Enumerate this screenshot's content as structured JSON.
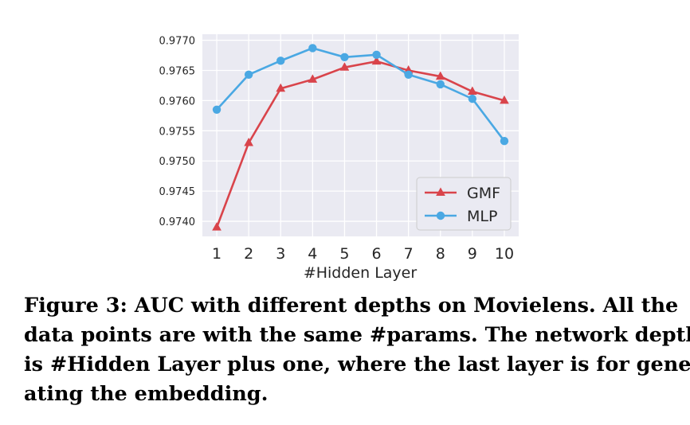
{
  "chart_data": {
    "type": "line",
    "xlabel": "#Hidden Layer",
    "ylabel": "",
    "x": [
      1,
      2,
      3,
      4,
      5,
      6,
      7,
      8,
      9,
      10
    ],
    "xlim": [
      0.55,
      10.45
    ],
    "ylim": [
      0.97375,
      0.9771
    ],
    "yticks": [
      "0.9740",
      "0.9745",
      "0.9750",
      "0.9755",
      "0.9760",
      "0.9765",
      "0.9770"
    ],
    "grid": true,
    "legend_position": "lower-right",
    "series": [
      {
        "name": "GMF",
        "color": "#d9444b",
        "marker": "triangle",
        "values": [
          0.9739,
          0.9753,
          0.9762,
          0.97635,
          0.97655,
          0.97665,
          0.9765,
          0.9764,
          0.97615,
          0.976
        ]
      },
      {
        "name": "MLP",
        "color": "#4aa8e3",
        "marker": "circle",
        "values": [
          0.97585,
          0.97643,
          0.97666,
          0.97687,
          0.97672,
          0.97676,
          0.97643,
          0.97627,
          0.97603,
          0.97533
        ]
      }
    ]
  },
  "caption": {
    "lines": [
      "Figure 3: AUC with different depths on Movielens. All the",
      "data points are with the same #params. The network depth",
      "is #Hidden Layer plus one, where the last layer is for gener-",
      "ating the embedding."
    ]
  }
}
